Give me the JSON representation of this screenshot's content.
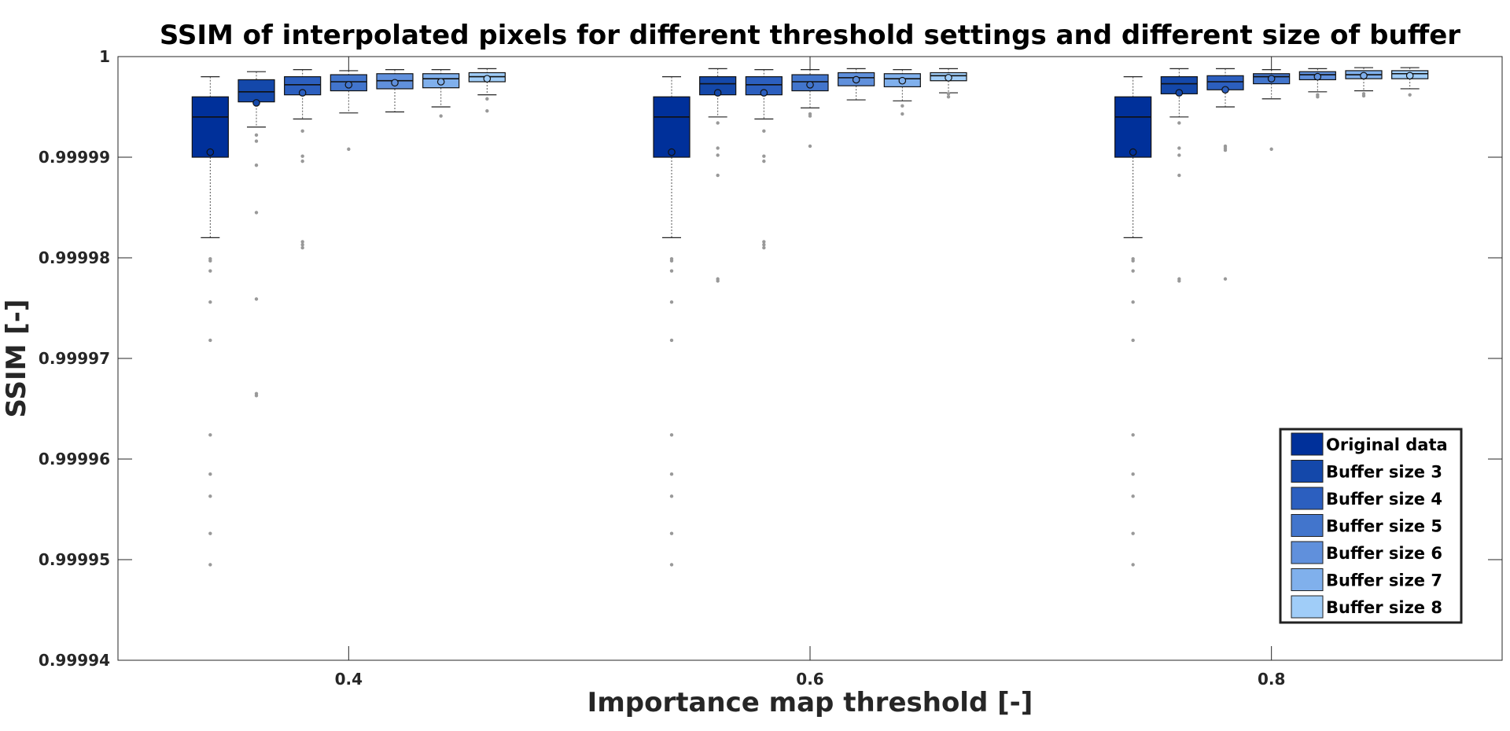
{
  "chart_data": {
    "type": "box",
    "title": "SSIM of interpolated pixels for different threshold settings and different size of buffer",
    "xlabel": "Importance map threshold [-]",
    "ylabel": "SSIM [-]",
    "ylim": [
      0.99994,
      1
    ],
    "xlim": [
      0.3,
      0.9
    ],
    "yticks": [
      0.99994,
      0.99995,
      0.99996,
      0.99997,
      0.99998,
      0.99999,
      1
    ],
    "ytick_labels": [
      "0.99994",
      "0.99995",
      "0.99996",
      "0.99997",
      "0.99998",
      "0.99999",
      "1"
    ],
    "xticks": [
      0.4,
      0.6,
      0.8
    ],
    "xtick_labels": [
      "0.4",
      "0.6",
      "0.8"
    ],
    "legend_position": "bottom-right",
    "grid": false,
    "series": [
      {
        "name": "Original data",
        "color": "#00309a"
      },
      {
        "name": "Buffer size 3",
        "color": "#1448aa"
      },
      {
        "name": "Buffer size 4",
        "color": "#2c5fbf"
      },
      {
        "name": "Buffer size 5",
        "color": "#4275cc"
      },
      {
        "name": "Buffer size 6",
        "color": "#6090dc"
      },
      {
        "name": "Buffer size 7",
        "color": "#80b0ec"
      },
      {
        "name": "Buffer size 8",
        "color": "#a0cdf8"
      }
    ],
    "groups": [
      {
        "threshold": 0.4,
        "boxes": [
          {
            "x": 0.34,
            "whisker_low": 0.999982,
            "q1": 0.99999,
            "median": 0.999994,
            "q3": 0.999996,
            "whisker_high": 0.999998,
            "mean": 0.9999905,
            "outliers": [
              0.9999799,
              0.9999797,
              0.9999787,
              0.9999756,
              0.9999718,
              0.9999624,
              0.9999585,
              0.9999563,
              0.9999526,
              0.9999495
            ]
          },
          {
            "x": 0.36,
            "whisker_low": 0.999993,
            "q1": 0.9999955,
            "median": 0.9999965,
            "q3": 0.9999977,
            "whisker_high": 0.9999985,
            "mean": 0.9999954,
            "outliers": [
              0.9999922,
              0.9999916,
              0.9999892,
              0.9999845,
              0.9999759,
              0.9999665,
              0.9999663
            ]
          },
          {
            "x": 0.38,
            "whisker_low": 0.9999938,
            "q1": 0.9999962,
            "median": 0.9999972,
            "q3": 0.999998,
            "whisker_high": 0.9999987,
            "mean": 0.9999964,
            "outliers": [
              0.9999926,
              0.9999901,
              0.9999896,
              0.9999816,
              0.9999813,
              0.999981
            ]
          },
          {
            "x": 0.4,
            "whisker_low": 0.9999944,
            "q1": 0.9999966,
            "median": 0.9999975,
            "q3": 0.9999982,
            "whisker_high": 0.9999986,
            "mean": 0.9999972,
            "outliers": [
              0.9999908
            ]
          },
          {
            "x": 0.42,
            "whisker_low": 0.9999945,
            "q1": 0.9999968,
            "median": 0.9999976,
            "q3": 0.9999983,
            "whisker_high": 0.9999987,
            "mean": 0.9999974,
            "outliers": []
          },
          {
            "x": 0.44,
            "whisker_low": 0.999995,
            "q1": 0.9999969,
            "median": 0.9999978,
            "q3": 0.9999983,
            "whisker_high": 0.9999987,
            "mean": 0.9999975,
            "outliers": [
              0.9999941
            ]
          },
          {
            "x": 0.46,
            "whisker_low": 0.9999962,
            "q1": 0.9999975,
            "median": 0.999998,
            "q3": 0.9999984,
            "whisker_high": 0.9999988,
            "mean": 0.9999978,
            "outliers": [
              0.9999958,
              0.9999946
            ]
          }
        ]
      },
      {
        "threshold": 0.6,
        "boxes": [
          {
            "x": 0.54,
            "whisker_low": 0.999982,
            "q1": 0.99999,
            "median": 0.999994,
            "q3": 0.999996,
            "whisker_high": 0.999998,
            "mean": 0.9999905,
            "outliers": [
              0.9999799,
              0.9999797,
              0.9999787,
              0.9999756,
              0.9999718,
              0.9999624,
              0.9999585,
              0.9999563,
              0.9999526,
              0.9999495
            ]
          },
          {
            "x": 0.56,
            "whisker_low": 0.999994,
            "q1": 0.9999962,
            "median": 0.9999973,
            "q3": 0.999998,
            "whisker_high": 0.9999988,
            "mean": 0.9999964,
            "outliers": [
              0.9999934,
              0.9999909,
              0.9999902,
              0.9999882,
              0.9999779,
              0.9999777
            ]
          },
          {
            "x": 0.58,
            "whisker_low": 0.9999938,
            "q1": 0.9999962,
            "median": 0.9999972,
            "q3": 0.999998,
            "whisker_high": 0.9999987,
            "mean": 0.9999964,
            "outliers": [
              0.9999926,
              0.9999901,
              0.9999896,
              0.9999816,
              0.9999813,
              0.999981
            ]
          },
          {
            "x": 0.6,
            "whisker_low": 0.9999949,
            "q1": 0.9999966,
            "median": 0.9999975,
            "q3": 0.9999982,
            "whisker_high": 0.9999987,
            "mean": 0.9999972,
            "outliers": [
              0.9999943,
              0.9999941,
              0.9999911
            ]
          },
          {
            "x": 0.62,
            "whisker_low": 0.9999957,
            "q1": 0.9999971,
            "median": 0.9999979,
            "q3": 0.9999984,
            "whisker_high": 0.9999988,
            "mean": 0.9999977,
            "outliers": []
          },
          {
            "x": 0.64,
            "whisker_low": 0.9999956,
            "q1": 0.999997,
            "median": 0.9999978,
            "q3": 0.9999983,
            "whisker_high": 0.9999987,
            "mean": 0.9999976,
            "outliers": [
              0.9999951,
              0.9999943
            ]
          },
          {
            "x": 0.66,
            "whisker_low": 0.9999964,
            "q1": 0.9999976,
            "median": 0.9999981,
            "q3": 0.9999984,
            "whisker_high": 0.9999988,
            "mean": 0.9999979,
            "outliers": [
              0.9999963,
              0.999996
            ]
          }
        ]
      },
      {
        "threshold": 0.8,
        "boxes": [
          {
            "x": 0.74,
            "whisker_low": 0.999982,
            "q1": 0.99999,
            "median": 0.999994,
            "q3": 0.999996,
            "whisker_high": 0.999998,
            "mean": 0.9999905,
            "outliers": [
              0.9999799,
              0.9999797,
              0.9999787,
              0.9999756,
              0.9999718,
              0.9999624,
              0.9999585,
              0.9999563,
              0.9999526,
              0.9999495
            ]
          },
          {
            "x": 0.76,
            "whisker_low": 0.999994,
            "q1": 0.9999963,
            "median": 0.9999973,
            "q3": 0.999998,
            "whisker_high": 0.9999988,
            "mean": 0.9999964,
            "outliers": [
              0.9999934,
              0.9999909,
              0.9999902,
              0.9999882,
              0.9999779,
              0.9999777
            ]
          },
          {
            "x": 0.78,
            "whisker_low": 0.999995,
            "q1": 0.9999967,
            "median": 0.9999975,
            "q3": 0.9999981,
            "whisker_high": 0.9999988,
            "mean": 0.9999967,
            "outliers": [
              0.9999911,
              0.9999909,
              0.9999907,
              0.9999779
            ]
          },
          {
            "x": 0.8,
            "whisker_low": 0.9999958,
            "q1": 0.9999973,
            "median": 0.999998,
            "q3": 0.9999983,
            "whisker_high": 0.9999987,
            "mean": 0.9999978,
            "outliers": [
              0.9999908
            ]
          },
          {
            "x": 0.82,
            "whisker_low": 0.9999965,
            "q1": 0.9999977,
            "median": 0.9999982,
            "q3": 0.9999985,
            "whisker_high": 0.9999988,
            "mean": 0.999998,
            "outliers": [
              0.9999962,
              0.999996
            ]
          },
          {
            "x": 0.84,
            "whisker_low": 0.9999966,
            "q1": 0.9999978,
            "median": 0.9999982,
            "q3": 0.9999986,
            "whisker_high": 0.9999989,
            "mean": 0.9999981,
            "outliers": [
              0.9999963,
              0.9999961
            ]
          },
          {
            "x": 0.86,
            "whisker_low": 0.9999968,
            "q1": 0.9999978,
            "median": 0.9999983,
            "q3": 0.9999986,
            "whisker_high": 0.9999989,
            "mean": 0.9999981,
            "outliers": [
              0.9999962
            ]
          }
        ]
      }
    ]
  }
}
